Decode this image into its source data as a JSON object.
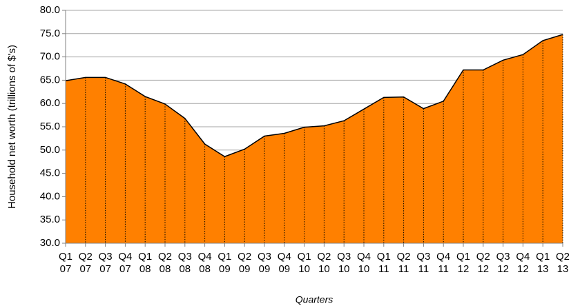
{
  "chart_data": {
    "type": "area",
    "x_label": "Quarters",
    "y_label": "Household net worth (trillions of $'s)",
    "categories": [
      "Q1 07",
      "Q2 07",
      "Q3 07",
      "Q4 07",
      "Q1 08",
      "Q2 08",
      "Q3 08",
      "Q4 08",
      "Q1 09",
      "Q2 09",
      "Q3 09",
      "Q4 09",
      "Q1 10",
      "Q2 10",
      "Q3 10",
      "Q4 10",
      "Q1 11",
      "Q2 11",
      "Q3 11",
      "Q4 11",
      "Q1 12",
      "Q2 12",
      "Q3 12",
      "Q4 12",
      "Q1 13",
      "Q2 13"
    ],
    "values": [
      64.9,
      65.6,
      65.6,
      64.2,
      61.5,
      59.9,
      56.8,
      51.3,
      48.6,
      50.2,
      53.0,
      53.6,
      54.9,
      55.2,
      56.3,
      58.8,
      61.3,
      61.4,
      58.9,
      60.5,
      67.2,
      67.2,
      69.3,
      70.5,
      73.5,
      74.8
    ],
    "color": "#ff8000",
    "ylim": [
      30,
      80
    ],
    "yticks": [
      {
        "value": 30,
        "label": "30.0"
      },
      {
        "value": 35,
        "label": "35.0"
      },
      {
        "value": 40,
        "label": "40.0"
      },
      {
        "value": 45,
        "label": "45.0"
      },
      {
        "value": 50,
        "label": "50.0"
      },
      {
        "value": 55,
        "label": "55.0"
      },
      {
        "value": 60,
        "label": "60.0"
      },
      {
        "value": 65,
        "label": "65.0"
      },
      {
        "value": 70,
        "label": "70.0"
      },
      {
        "value": 75,
        "label": "75.0"
      },
      {
        "value": 80,
        "label": "80.0"
      }
    ],
    "grid": true
  }
}
